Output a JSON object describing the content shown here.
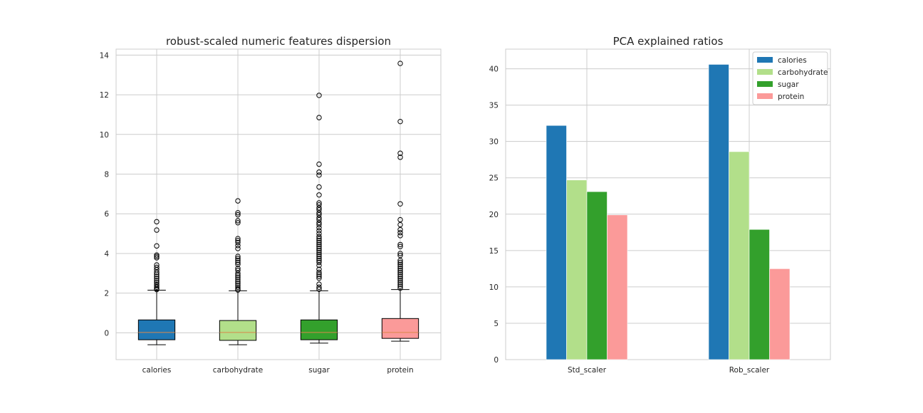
{
  "chart_data": [
    {
      "type": "box",
      "title": "robust-scaled numeric features dispersion",
      "xlabel": "",
      "ylabel": "",
      "ylim": [
        -1.35,
        14.3
      ],
      "yticks": [
        0,
        2,
        4,
        6,
        8,
        10,
        12,
        14
      ],
      "grid": true,
      "categories": [
        "calories",
        "carbohydrate",
        "sugar",
        "protein"
      ],
      "colors": [
        "#1f77b4",
        "#b2df8a",
        "#33a02c",
        "#fb9a99"
      ],
      "boxes": [
        {
          "name": "calories",
          "whisker_low": -0.6,
          "q1": -0.35,
          "median": 0.02,
          "q3": 0.65,
          "whisker_high": 2.15,
          "outliers": [
            5.6,
            5.18,
            4.38,
            3.92,
            3.85,
            3.78,
            3.42,
            3.3,
            3.18,
            3.05,
            2.95,
            2.85,
            2.75,
            2.65,
            2.55,
            2.45,
            2.38,
            2.3,
            2.22,
            2.18
          ]
        },
        {
          "name": "carbohydrate",
          "whisker_low": -0.6,
          "q1": -0.38,
          "median": 0.02,
          "q3": 0.62,
          "whisker_high": 2.12,
          "outliers": [
            6.65,
            6.05,
            5.95,
            5.65,
            5.55,
            4.75,
            4.65,
            4.55,
            4.4,
            4.25,
            3.85,
            3.75,
            3.65,
            3.55,
            3.45,
            3.25,
            3.15,
            3.0,
            2.9,
            2.8,
            2.7,
            2.6,
            2.5,
            2.4,
            2.3,
            2.22,
            2.16
          ]
        },
        {
          "name": "sugar",
          "whisker_low": -0.52,
          "q1": -0.35,
          "median": 0.02,
          "q3": 0.65,
          "whisker_high": 2.12,
          "outliers": [
            11.97,
            10.85,
            8.5,
            8.1,
            7.95,
            7.35,
            6.95,
            6.55,
            6.45,
            6.3,
            6.2,
            6.05,
            5.95,
            5.8,
            5.7,
            5.55,
            5.45,
            5.3,
            5.15,
            5.0,
            4.85,
            4.75,
            4.65,
            4.55,
            4.45,
            4.35,
            4.25,
            4.15,
            4.05,
            3.95,
            3.85,
            3.75,
            3.65,
            3.55,
            3.4,
            3.2,
            3.05,
            2.95,
            2.85,
            2.75,
            2.45,
            2.3,
            2.2
          ]
        },
        {
          "name": "protein",
          "whisker_low": -0.42,
          "q1": -0.28,
          "median": 0.02,
          "q3": 0.72,
          "whisker_high": 2.18,
          "outliers": [
            13.58,
            10.65,
            9.05,
            8.85,
            6.5,
            5.7,
            5.45,
            5.2,
            5.05,
            4.9,
            4.45,
            4.35,
            4.0,
            3.9,
            3.65,
            3.55,
            3.45,
            3.35,
            3.25,
            3.15,
            3.05,
            2.95,
            2.85,
            2.75,
            2.65,
            2.55,
            2.45,
            2.35,
            2.25
          ]
        }
      ]
    },
    {
      "type": "bar",
      "title": "PCA explained ratios",
      "xlabel": "",
      "ylabel": "",
      "ylim": [
        0,
        42.7
      ],
      "yticks": [
        0,
        5,
        10,
        15,
        20,
        25,
        30,
        35,
        40
      ],
      "grid": true,
      "legend_position": "top-right",
      "categories": [
        "Std_scaler",
        "Rob_scaler"
      ],
      "series": [
        {
          "name": "calories",
          "color": "#1f77b4",
          "values": [
            32.2,
            40.6
          ]
        },
        {
          "name": "carbohydrate",
          "color": "#b2df8a",
          "values": [
            24.7,
            28.6
          ]
        },
        {
          "name": "sugar",
          "color": "#33a02c",
          "values": [
            23.1,
            17.9
          ]
        },
        {
          "name": "protein",
          "color": "#fb9a99",
          "values": [
            19.9,
            12.5
          ]
        }
      ]
    }
  ]
}
